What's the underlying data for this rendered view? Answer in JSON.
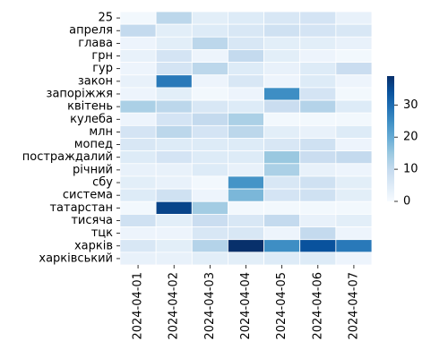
{
  "chart_data": {
    "type": "heatmap",
    "x_labels": [
      "2024-04-01",
      "2024-04-02",
      "2024-04-03",
      "2024-04-04",
      "2024-04-05",
      "2024-04-06",
      "2024-04-07"
    ],
    "y_labels": [
      "25",
      "апреля",
      "глава",
      "грн",
      "гур",
      "закон",
      "запоріжжя",
      "квітень",
      "кулеба",
      "млн",
      "мопед",
      "постраждалий",
      "річний",
      "сбу",
      "система",
      "татарстан",
      "тисяча",
      "тцк",
      "харків",
      "харківський"
    ],
    "values": [
      [
        1,
        11,
        4,
        5,
        6,
        7,
        3
      ],
      [
        10,
        4,
        5,
        6,
        8,
        7,
        6
      ],
      [
        2,
        4,
        11,
        6,
        4,
        4,
        3
      ],
      [
        3,
        7,
        2,
        10,
        4,
        2,
        1
      ],
      [
        2,
        7,
        11,
        5,
        3,
        5,
        9
      ],
      [
        3,
        28,
        2,
        6,
        2,
        5,
        2
      ],
      [
        2,
        4,
        1,
        2,
        25,
        7,
        1
      ],
      [
        13,
        11,
        6,
        5,
        9,
        12,
        5
      ],
      [
        2,
        7,
        10,
        13,
        1,
        1,
        1
      ],
      [
        7,
        11,
        7,
        11,
        4,
        3,
        5
      ],
      [
        6,
        5,
        5,
        5,
        6,
        8,
        2
      ],
      [
        5,
        7,
        5,
        5,
        15,
        9,
        10
      ],
      [
        3,
        3,
        5,
        3,
        13,
        3,
        2
      ],
      [
        4,
        3,
        1,
        24,
        6,
        8,
        4
      ],
      [
        5,
        8,
        2,
        18,
        7,
        8,
        4
      ],
      [
        1,
        36,
        14,
        1,
        1,
        1,
        1
      ],
      [
        8,
        4,
        9,
        6,
        10,
        3,
        4
      ],
      [
        2,
        2,
        6,
        6,
        2,
        10,
        2
      ],
      [
        6,
        4,
        12,
        39,
        25,
        34,
        28
      ],
      [
        3,
        3,
        4,
        4,
        5,
        5,
        2
      ]
    ],
    "vmin": 0,
    "vmax": 39,
    "colormap": "Blues",
    "colorbar_ticks": [
      0,
      10,
      20,
      30
    ],
    "grid_lines": "white",
    "title": "",
    "xlabel": "",
    "ylabel": ""
  }
}
